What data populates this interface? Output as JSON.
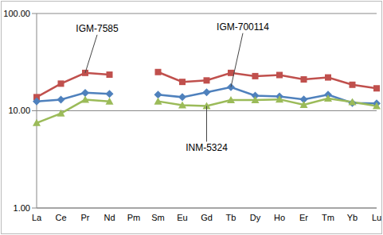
{
  "chart_data": {
    "type": "line",
    "log": "y",
    "grid": true,
    "categories": [
      "La",
      "Ce",
      "Pr",
      "Nd",
      "Pm",
      "Sm",
      "Eu",
      "Gd",
      "Tb",
      "Dy",
      "Ho",
      "Er",
      "Tm",
      "Yb",
      "Lu"
    ],
    "ylim": [
      1,
      100
    ],
    "yticks": [
      {
        "value": 1,
        "label": "1.00"
      },
      {
        "value": 10,
        "label": "10.00"
      },
      {
        "value": 100,
        "label": "100.00"
      }
    ],
    "series": [
      {
        "name": "IGM-7585",
        "color": "#c0504d",
        "marker": "square",
        "values": [
          13.8,
          19,
          24.5,
          23.5,
          null,
          25,
          19.8,
          20.5,
          24.5,
          22.7,
          23.3,
          21,
          22,
          18.5,
          17
        ]
      },
      {
        "name": "IGM-700114",
        "color": "#4f81bd",
        "marker": "diamond",
        "values": [
          12.5,
          13,
          15.3,
          14.9,
          null,
          14.6,
          13.8,
          15.5,
          17.5,
          14.3,
          14,
          13.1,
          14.6,
          12,
          11.9
        ]
      },
      {
        "name": "INM-5324",
        "color": "#9bbb59",
        "marker": "triangle",
        "values": [
          7.5,
          9.4,
          13,
          12.5,
          null,
          12.5,
          11.4,
          11.2,
          12.9,
          12.9,
          13.1,
          11.5,
          13.4,
          12.3,
          11.2
        ]
      }
    ]
  }
}
